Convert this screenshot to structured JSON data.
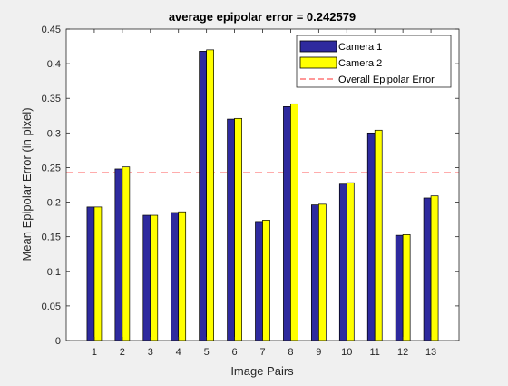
{
  "chart_data": {
    "type": "bar",
    "title": "average epipolar error = 0.242579",
    "xlabel": "Image Pairs",
    "ylabel": "Mean Epipolar Error (in pixel)",
    "categories": [
      "1",
      "2",
      "3",
      "4",
      "5",
      "6",
      "7",
      "8",
      "9",
      "10",
      "11",
      "12",
      "13"
    ],
    "series": [
      {
        "name": "Camera 1",
        "color": "#2e2a9e",
        "values": [
          0.193,
          0.248,
          0.181,
          0.185,
          0.418,
          0.32,
          0.172,
          0.338,
          0.196,
          0.226,
          0.3,
          0.152,
          0.206
        ]
      },
      {
        "name": "Camera 2",
        "color": "#ffff00",
        "values": [
          0.193,
          0.251,
          0.181,
          0.186,
          0.42,
          0.321,
          0.174,
          0.342,
          0.197,
          0.228,
          0.304,
          0.153,
          0.209
        ]
      }
    ],
    "reference_line": {
      "name": "Overall Epipolar Error",
      "value": 0.242579,
      "color": "#ff5a5a",
      "style": "dashed"
    },
    "ylim": [
      0,
      0.45
    ],
    "yticks": [
      "0",
      "0.05",
      "0.1",
      "0.15",
      "0.2",
      "0.25",
      "0.3",
      "0.35",
      "0.4",
      "0.45"
    ],
    "ytick_values": [
      0,
      0.05,
      0.1,
      0.15,
      0.2,
      0.25,
      0.3,
      0.35,
      0.4,
      0.45
    ],
    "grid": false,
    "legend_position": "top-right"
  }
}
